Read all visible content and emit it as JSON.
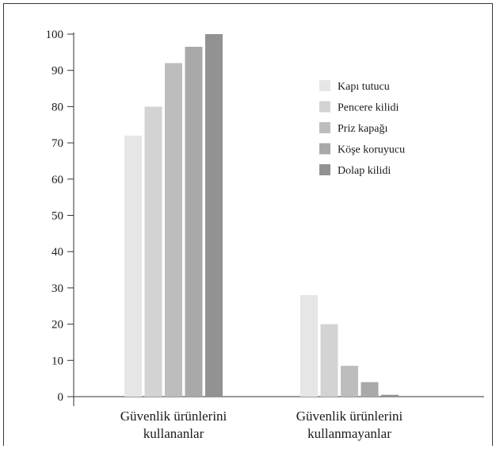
{
  "chart_data": {
    "type": "bar",
    "title": "",
    "xlabel": "",
    "ylabel": "",
    "ylim": [
      0,
      100
    ],
    "yticks": [
      0,
      10,
      20,
      30,
      40,
      50,
      60,
      70,
      80,
      90,
      100
    ],
    "categories": [
      [
        "Güvenlik ürünlerini",
        "kullananlar"
      ],
      [
        "Güvenlik ürünlerini",
        "kullanmayanlar"
      ]
    ],
    "series": [
      {
        "name": "Kapı tutucu",
        "color": "#e6e6e6",
        "values": [
          72,
          28
        ]
      },
      {
        "name": "Pencere kilidi",
        "color": "#d3d3d3",
        "values": [
          80,
          20
        ]
      },
      {
        "name": "Priz kapağı",
        "color": "#bdbdbd",
        "values": [
          92,
          8.5
        ]
      },
      {
        "name": "Köşe koruyucu",
        "color": "#a9a9a9",
        "values": [
          96.5,
          4
        ]
      },
      {
        "name": "Dolap kilidi",
        "color": "#929292",
        "values": [
          100,
          0.5
        ]
      }
    ],
    "legend": "top-right",
    "grid": false
  }
}
